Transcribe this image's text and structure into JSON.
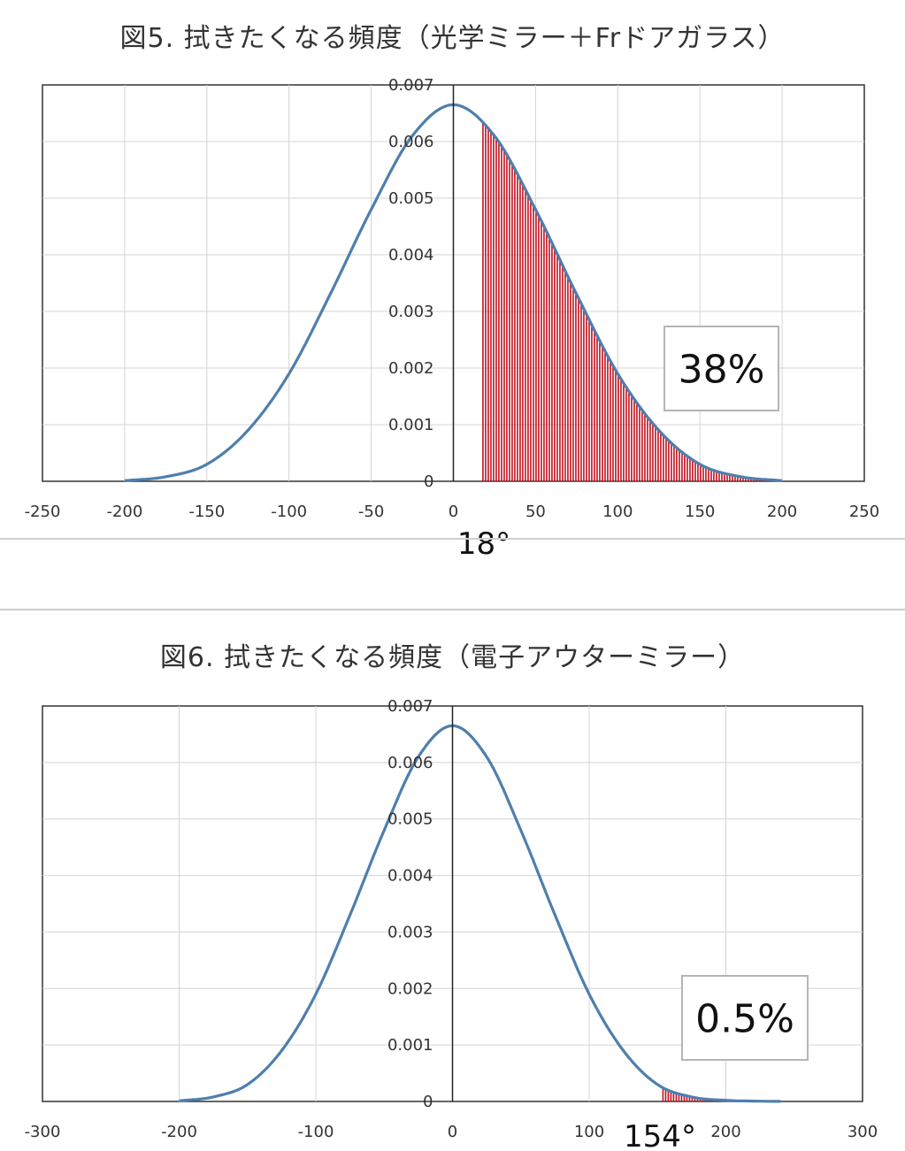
{
  "chart_data": [
    {
      "type": "area",
      "title": "図5. 拭きたくなる頻度（光学ミラー＋Frドアガラス）",
      "xlim": [
        -250,
        250
      ],
      "ylim": [
        0,
        0.007
      ],
      "x_ticks": [
        -250,
        -200,
        -150,
        -100,
        -50,
        0,
        50,
        100,
        150,
        200,
        250
      ],
      "x_tick_labels": [
        "-250",
        "-200",
        "-150",
        "-100",
        "-50",
        "0",
        "50",
        "100",
        "150",
        "200",
        "250"
      ],
      "y_ticks": [
        0,
        0.001,
        0.002,
        0.003,
        0.004,
        0.005,
        0.006,
        0.007
      ],
      "y_tick_labels": [
        "0",
        "0.001",
        "0.002",
        "0.003",
        "0.004",
        "0.005",
        "0.006",
        "0.007"
      ],
      "grid": true,
      "series": [
        {
          "x": [
            -200,
            -175,
            -150,
            -125,
            -100,
            -75,
            -50,
            -25,
            0,
            25,
            50,
            75,
            100,
            125,
            150,
            175,
            200
          ],
          "values": [
            1e-05,
            8e-05,
            0.0003,
            0.0009,
            0.0019,
            0.0033,
            0.0048,
            0.0061,
            0.00665,
            0.0061,
            0.0048,
            0.0033,
            0.0019,
            0.0009,
            0.0003,
            8e-05,
            1e-05
          ],
          "color": "#4e7fad"
        }
      ],
      "shaded_from": 18,
      "shaded_to": 200,
      "shade_color": "#c0101e",
      "threshold_label": "18°",
      "annotation": "38%"
    },
    {
      "type": "area",
      "title": "図6. 拭きたくなる頻度（電子アウターミラー）",
      "xlim": [
        -300,
        300
      ],
      "ylim": [
        0,
        0.007
      ],
      "x_ticks": [
        -300,
        -200,
        -100,
        0,
        100,
        200,
        300
      ],
      "x_tick_labels": [
        "-300",
        "-200",
        "-100",
        "0",
        "100",
        "200",
        "300"
      ],
      "y_ticks": [
        0,
        0.001,
        0.002,
        0.003,
        0.004,
        0.005,
        0.006,
        0.007
      ],
      "y_tick_labels": [
        "0",
        "0.001",
        "0.002",
        "0.003",
        "0.004",
        "0.005",
        "0.006",
        "0.007"
      ],
      "grid": true,
      "series": [
        {
          "x": [
            -200,
            -175,
            -150,
            -125,
            -100,
            -75,
            -50,
            -25,
            0,
            25,
            50,
            75,
            100,
            125,
            150,
            175,
            200,
            225,
            240
          ],
          "values": [
            1e-05,
            8e-05,
            0.0003,
            0.0009,
            0.0019,
            0.0033,
            0.0048,
            0.0061,
            0.00665,
            0.0061,
            0.0048,
            0.0033,
            0.0019,
            0.0009,
            0.0003,
            8e-05,
            2e-05,
            5e-06,
            1e-06
          ],
          "color": "#4e7fad"
        }
      ],
      "shaded_from": 154,
      "shaded_to": 200,
      "shade_color": "#c0101e",
      "threshold_label": "154°",
      "annotation": "0.5%"
    }
  ]
}
